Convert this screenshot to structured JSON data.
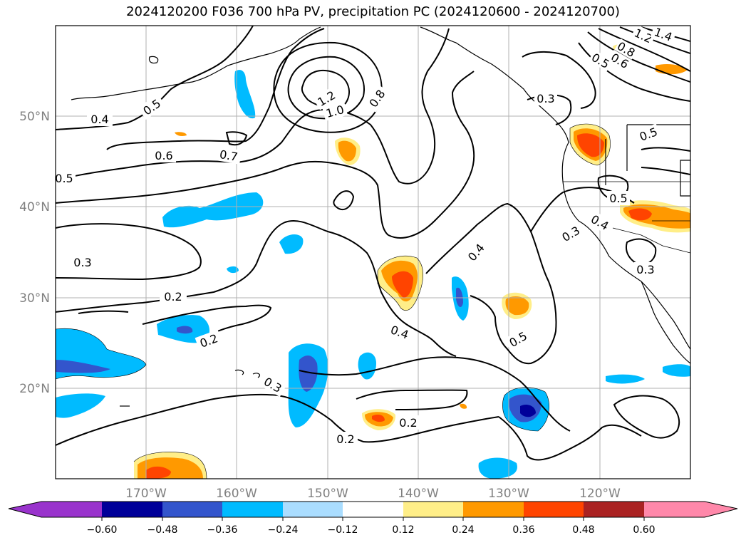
{
  "title": "2024120200 F036 700 hPa PV, precipitation PC (2024120600 - 2024120700)",
  "map": {
    "lon_labels": [
      "170°W",
      "160°W",
      "150°W",
      "140°W",
      "130°W",
      "120°W"
    ],
    "lat_labels": [
      "50°N",
      "40°N",
      "30°N",
      "20°N"
    ],
    "contour_labels": [
      "0.4",
      "0.5",
      "1.2",
      "1.0",
      "0.8",
      "0.3",
      "1.2",
      "1.4",
      "0.8",
      "0.6",
      "0.5",
      "0.6",
      "0.7",
      "0.5",
      "0.5",
      "0.5",
      "0.4",
      "0.3",
      "0.3",
      "0.4",
      "0.3",
      "0.2",
      "0.4",
      "0.5",
      "0.3",
      "0.2",
      "0.2",
      "0.2"
    ]
  },
  "colorbar": {
    "ticks": [
      "−0.60",
      "−0.48",
      "−0.36",
      "−0.24",
      "−0.12",
      "0.12",
      "0.24",
      "0.36",
      "0.48",
      "0.60"
    ],
    "colors": [
      "#9933cc",
      "#000099",
      "#3355cc",
      "#00bbff",
      "#aaddff",
      "#ffffff",
      "#ffee88",
      "#ff9900",
      "#ff4400",
      "#aa2222",
      "#ff88aa"
    ]
  }
}
